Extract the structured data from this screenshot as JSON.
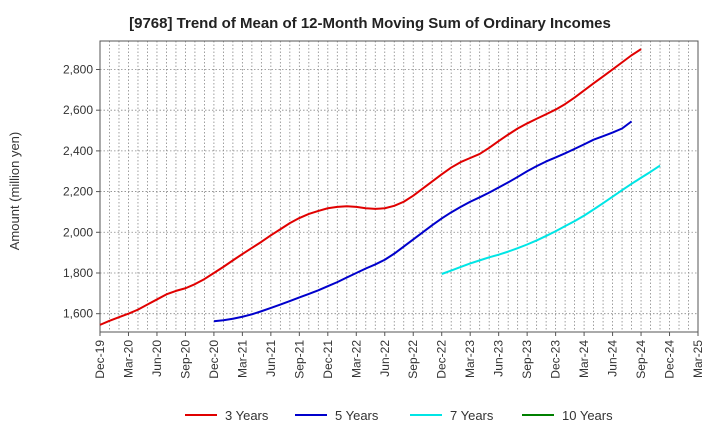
{
  "chart_data": {
    "type": "line",
    "title": "[9768]  Trend of Mean of 12-Month Moving Sum of Ordinary Incomes",
    "xlabel": "",
    "ylabel": "Amount (million yen)",
    "ylim": [
      1510,
      2940
    ],
    "yticks": [
      1600,
      1800,
      2000,
      2200,
      2400,
      2600,
      2800
    ],
    "ytick_labels": [
      "1,600",
      "1,800",
      "2,000",
      "2,200",
      "2,400",
      "2,600",
      "2,800"
    ],
    "xtick_labels": [
      "Dec-19",
      "Mar-20",
      "Jun-20",
      "Sep-20",
      "Dec-20",
      "Mar-21",
      "Jun-21",
      "Sep-21",
      "Dec-21",
      "Mar-22",
      "Jun-22",
      "Sep-22",
      "Dec-22",
      "Mar-23",
      "Jun-23",
      "Sep-23",
      "Dec-23",
      "Mar-24",
      "Jun-24",
      "Sep-24",
      "Dec-24",
      "Mar-25"
    ],
    "grid": true,
    "legend_position": "bottom",
    "series": [
      {
        "name": "3 Years",
        "color": "#e00000",
        "start": "Dec-19",
        "values": [
          1545,
          1565,
          1583,
          1600,
          1620,
          1645,
          1670,
          1695,
          1712,
          1725,
          1745,
          1770,
          1800,
          1830,
          1862,
          1893,
          1923,
          1953,
          1985,
          2015,
          2045,
          2070,
          2090,
          2105,
          2118,
          2125,
          2128,
          2125,
          2118,
          2115,
          2118,
          2130,
          2150,
          2180,
          2215,
          2250,
          2285,
          2318,
          2345,
          2365,
          2385,
          2415,
          2448,
          2480,
          2510,
          2535,
          2558,
          2580,
          2603,
          2630,
          2662,
          2697,
          2732,
          2766,
          2800,
          2835,
          2870,
          2900
        ]
      },
      {
        "name": "5 Years",
        "color": "#0000cc",
        "start": "Dec-20",
        "values": [
          1563,
          1568,
          1575,
          1585,
          1597,
          1612,
          1628,
          1645,
          1662,
          1680,
          1697,
          1715,
          1735,
          1755,
          1778,
          1800,
          1822,
          1842,
          1865,
          1895,
          1930,
          1965,
          2000,
          2035,
          2068,
          2098,
          2125,
          2150,
          2172,
          2195,
          2220,
          2245,
          2272,
          2300,
          2325,
          2348,
          2368,
          2388,
          2410,
          2432,
          2455,
          2472,
          2490,
          2510,
          2545
        ]
      },
      {
        "name": "7 Years",
        "color": "#00e5e5",
        "start": "Dec-22",
        "values": [
          1795,
          1812,
          1830,
          1847,
          1862,
          1877,
          1890,
          1905,
          1922,
          1940,
          1960,
          1982,
          2005,
          2030,
          2055,
          2082,
          2112,
          2143,
          2175,
          2207,
          2238,
          2268,
          2297,
          2328
        ]
      },
      {
        "name": "10 Years",
        "color": "#008000",
        "start": "Dec-19",
        "values": []
      }
    ]
  }
}
